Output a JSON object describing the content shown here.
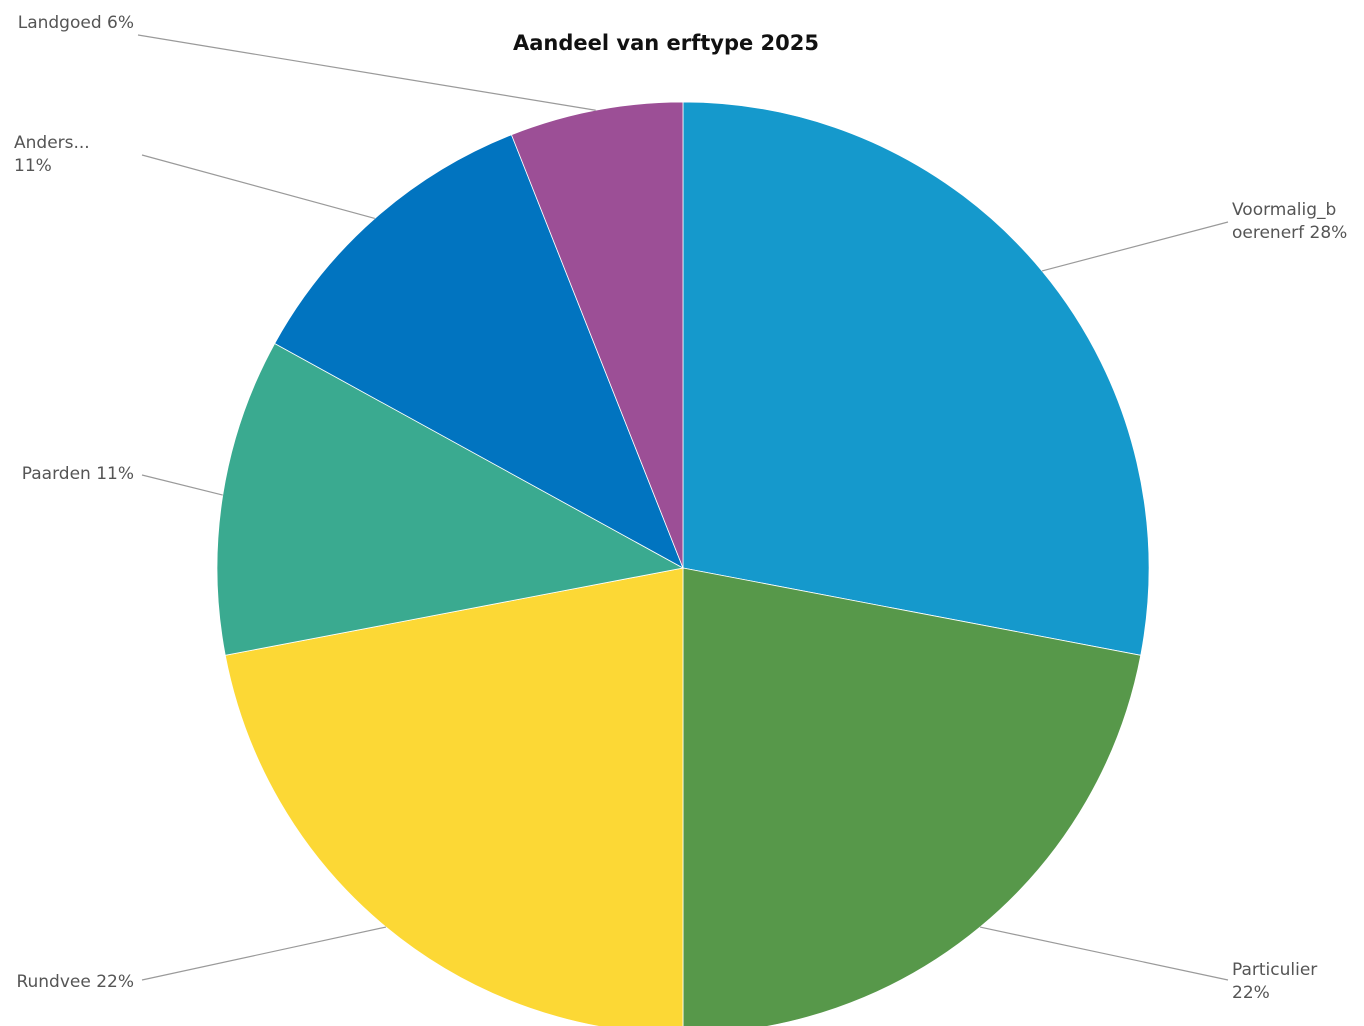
{
  "chart_data": {
    "type": "pie",
    "title": "Aandeel van erftype 2025",
    "slices": [
      {
        "category": "Voormalig_boerenerf",
        "label_lines": [
          "Voormalig_b",
          "oerenerf 28%"
        ],
        "value": 28,
        "color": "#1599cc"
      },
      {
        "category": "Particulier",
        "label_lines": [
          "Particulier",
          "22%"
        ],
        "value": 22,
        "color": "#57984a"
      },
      {
        "category": "Rundvee",
        "label_lines": [
          "Rundvee 22%"
        ],
        "value": 22,
        "color": "#fcd835"
      },
      {
        "category": "Paarden",
        "label_lines": [
          "Paarden 11%"
        ],
        "value": 11,
        "color": "#3aaa90"
      },
      {
        "category": "Anders",
        "label_lines": [
          "Anders...",
          "11%"
        ],
        "value": 11,
        "color": "#0174c0"
      },
      {
        "category": "Landgoed",
        "label_lines": [
          "Landgoed 6%"
        ],
        "value": 6,
        "color": "#9c4f96"
      }
    ],
    "start_angle": "12 o'clock",
    "direction": "clockwise",
    "legend": "none"
  }
}
